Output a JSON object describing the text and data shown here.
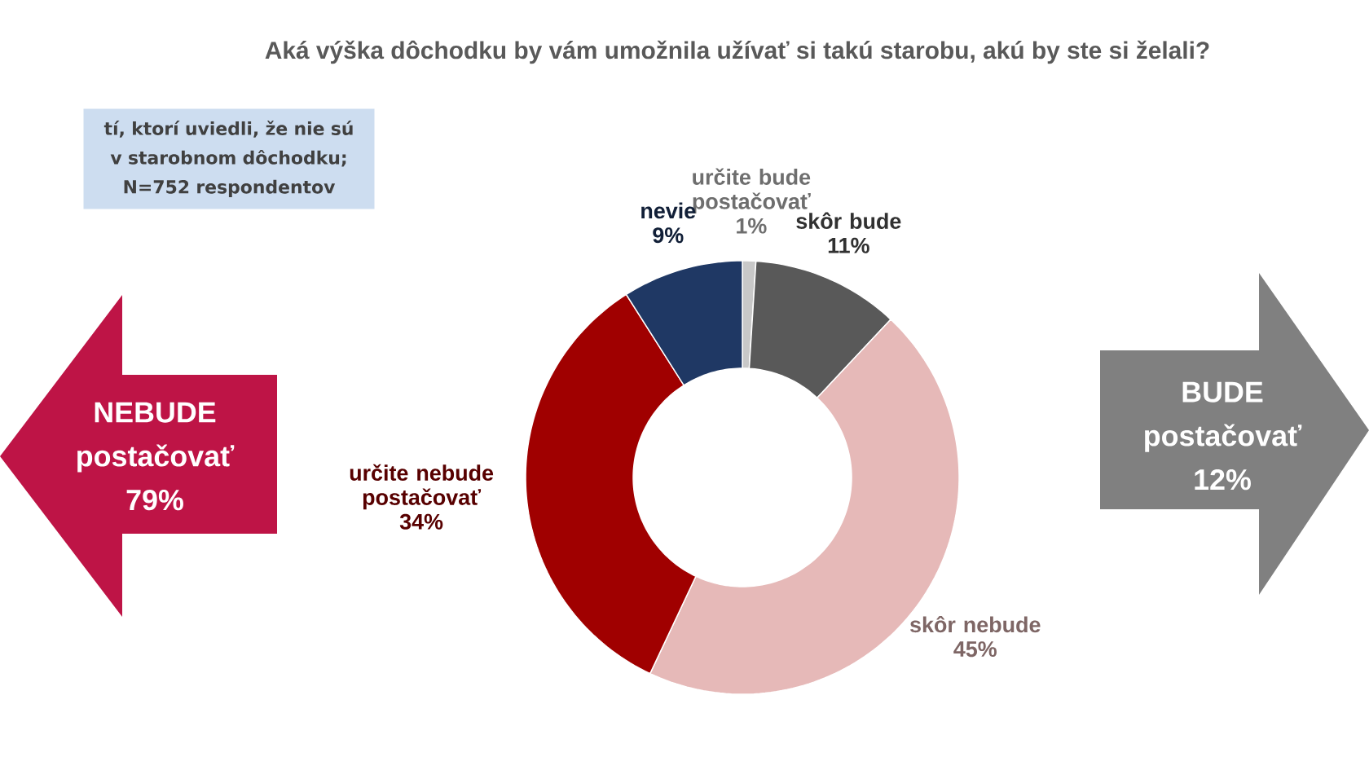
{
  "chart_data": {
    "type": "donut",
    "subtitle": "Aká výška dôchodku by vám umožnila užívať si takú starobu, akú by ste si želali?",
    "categories": [
      "určite bude postačovať",
      "skôr bude",
      "skôr nebude",
      "určite nebude postačovať",
      "nevie"
    ],
    "values": [
      1,
      11,
      45,
      34,
      9
    ],
    "colors": [
      "#c8c8c8",
      "#595959",
      "#e6b9b8",
      "#a00000",
      "#1f3864"
    ],
    "value_labels": [
      "1%",
      "11%",
      "45%",
      "34%",
      "9%"
    ],
    "annotations": [
      "tí, ktorí uviedli, že nie sú v starobnom dôchodku; N=752 respondentov",
      "NEBUDE postačovať 79%",
      "BUDE postačovať 12%"
    ]
  }
}
